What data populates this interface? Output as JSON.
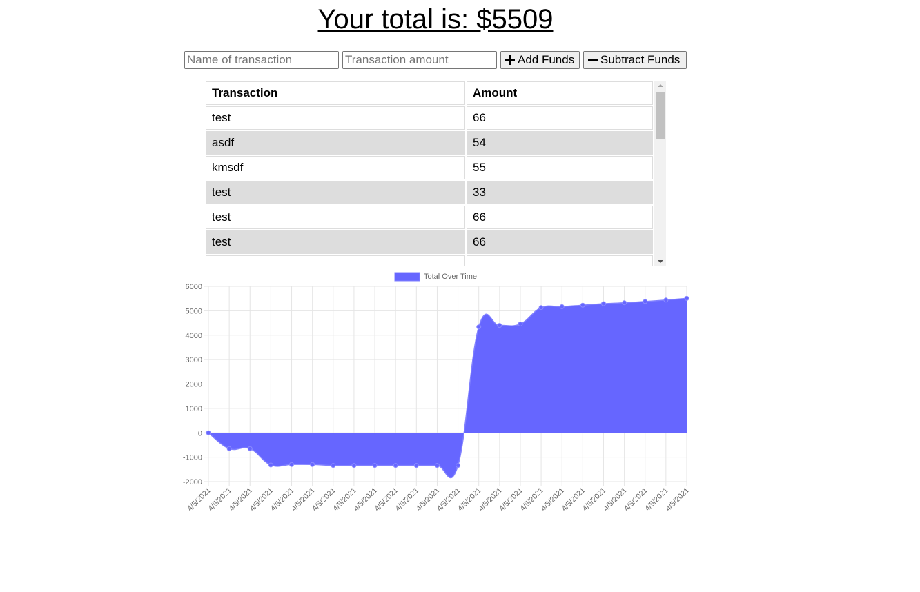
{
  "header": {
    "total_label": "Your total is: $5509"
  },
  "form": {
    "name_placeholder": "Name of transaction",
    "amount_placeholder": "Transaction amount",
    "add_label": "Add Funds",
    "subtract_label": "Subtract Funds",
    "add_icon": "plus-icon",
    "subtract_icon": "minus-icon"
  },
  "table": {
    "headers": [
      "Transaction",
      "Amount"
    ],
    "rows": [
      {
        "name": "test",
        "amount": "66"
      },
      {
        "name": "asdf",
        "amount": "54"
      },
      {
        "name": "kmsdf",
        "amount": "55"
      },
      {
        "name": "test",
        "amount": "33"
      },
      {
        "name": "test",
        "amount": "66"
      },
      {
        "name": "test",
        "amount": "66"
      }
    ]
  },
  "chart_data": {
    "type": "area",
    "title": "",
    "legend": {
      "label": "Total Over Time",
      "position": "top"
    },
    "color": "#6666ff",
    "x": [
      "4/5/2021",
      "4/5/2021",
      "4/5/2021",
      "4/5/2021",
      "4/5/2021",
      "4/5/2021",
      "4/5/2021",
      "4/5/2021",
      "4/5/2021",
      "4/5/2021",
      "4/5/2021",
      "4/5/2021",
      "4/5/2021",
      "4/5/2021",
      "4/5/2021",
      "4/5/2021",
      "4/5/2021",
      "4/5/2021",
      "4/5/2021",
      "4/5/2021",
      "4/5/2021",
      "4/5/2021",
      "4/5/2021",
      "4/5/2021"
    ],
    "series": [
      {
        "name": "Total Over Time",
        "values": [
          0,
          -650,
          -650,
          -1320,
          -1300,
          -1300,
          -1340,
          -1340,
          -1340,
          -1340,
          -1340,
          -1340,
          -1340,
          4340,
          4400,
          4460,
          5130,
          5170,
          5230,
          5290,
          5330,
          5380,
          5440,
          5509
        ]
      }
    ],
    "ylim": [
      -2000,
      6000
    ],
    "yticks": [
      6000,
      5000,
      4000,
      3000,
      2000,
      1000,
      0,
      -1000,
      -2000
    ],
    "grid": true
  }
}
